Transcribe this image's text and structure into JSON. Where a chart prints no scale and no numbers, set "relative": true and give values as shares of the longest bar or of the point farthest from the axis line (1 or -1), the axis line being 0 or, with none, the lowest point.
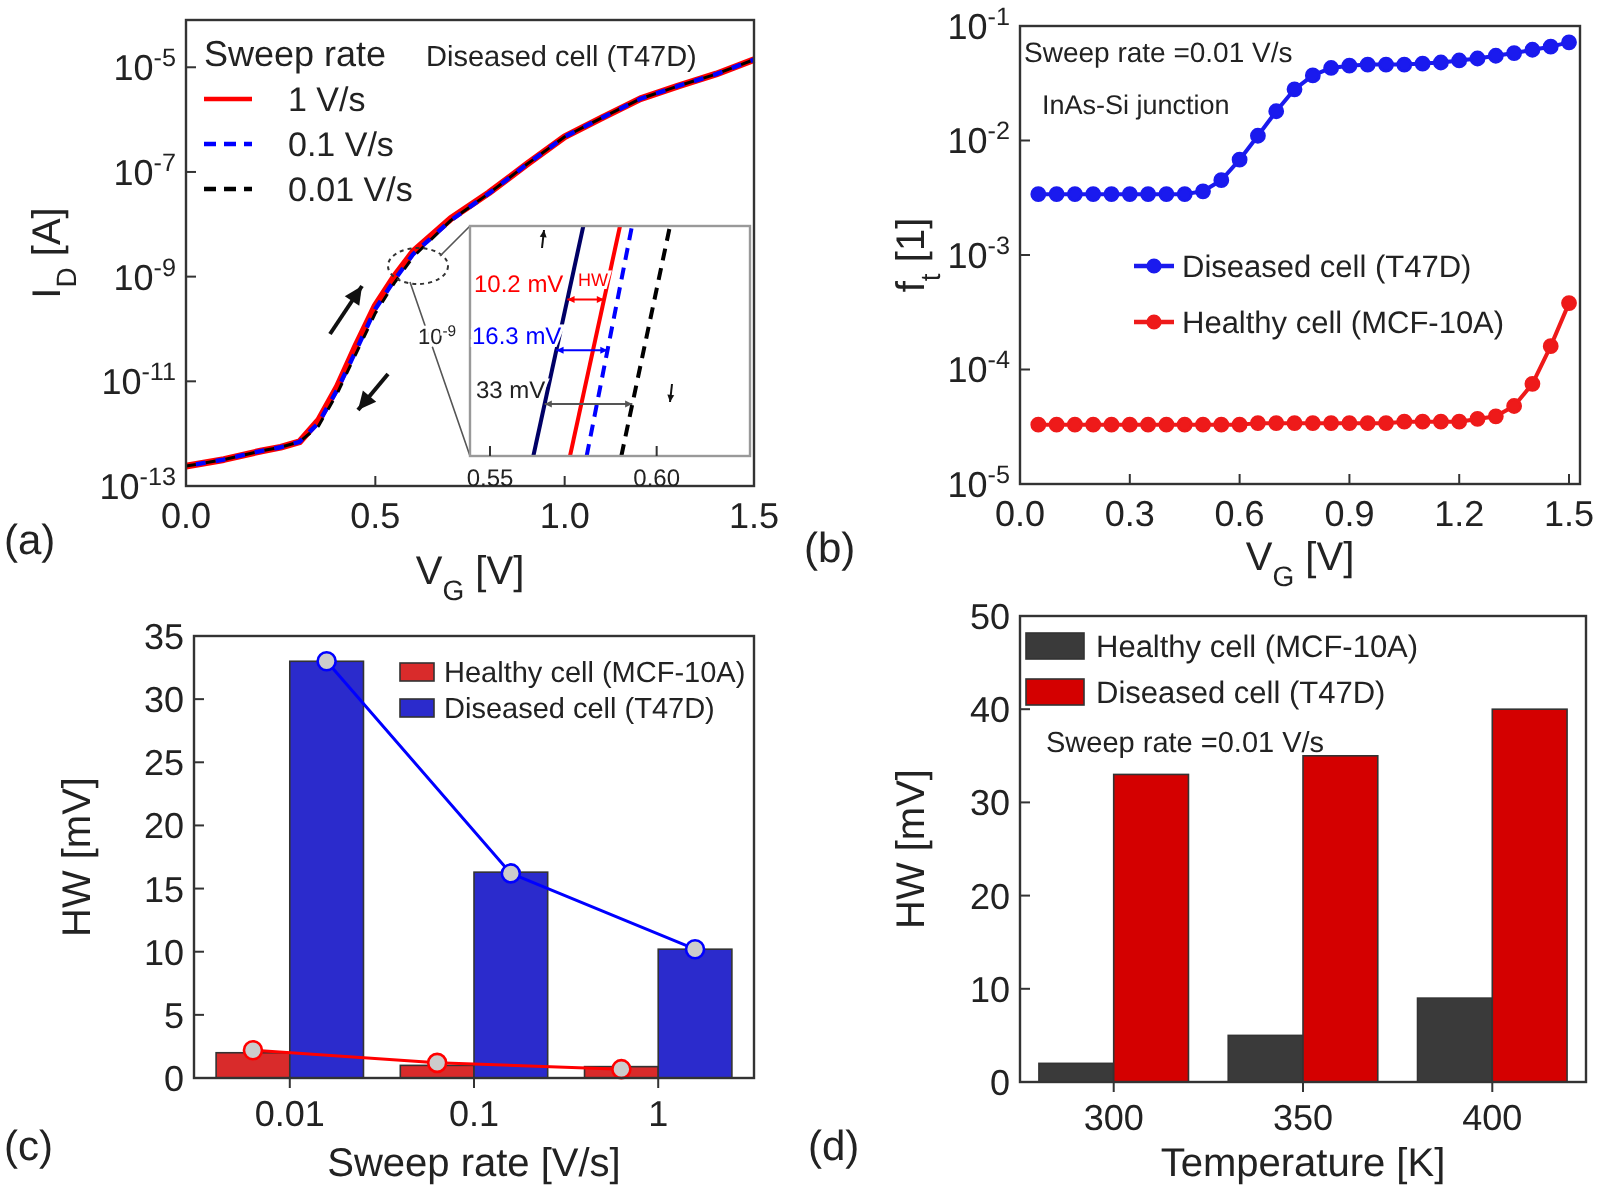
{
  "chart_data": [
    {
      "type": "line",
      "xlabel": "V$_{G}$ [V]",
      "ylabel": "I$_{D}$ [A]",
      "legend_title": "Sweep rate",
      "legend": "top left",
      "log": true,
      "annotations": [
        "(a)",
        "Diseased cell (T47D)"
      ],
      "x": [
        0,
        0.1,
        0.2,
        0.25,
        0.3,
        0.35,
        0.4,
        0.45,
        0.5,
        0.55,
        0.6,
        0.7,
        0.8,
        0.9,
        1.0,
        1.1,
        1.2,
        1.3,
        1.4,
        1.5
      ],
      "xlim": [
        0,
        1.5
      ],
      "xticks": [
        {
          "value": 0,
          "label": "0.0"
        },
        {
          "value": 0.5,
          "label": "0.5"
        },
        {
          "value": 1,
          "label": "1.0"
        },
        {
          "value": 1.5,
          "label": "1.5"
        }
      ],
      "ylim": [
        1e-13,
        8e-05
      ],
      "yticks": [
        {
          "value": 1e-13,
          "label": "10$^{-13}$"
        },
        {
          "value": 1e-11,
          "label": "10$^{-11}$"
        },
        {
          "value": 1e-09,
          "label": "10$^{-9}$"
        },
        {
          "value": 1e-07,
          "label": "10$^{-7}$"
        },
        {
          "value": 1e-05,
          "label": "10$^{-5}$"
        }
      ],
      "series": [
        {
          "name": "1 V/s",
          "color": "#ff0000",
          "line_style": "solid",
          "values": [
            2.4e-13,
            3.2e-13,
            4.7e-13,
            5.5e-13,
            7e-13,
            1.8e-12,
            8e-12,
            5e-11,
            2.8e-10,
            1e-09,
            3e-09,
            1.3e-08,
            4e-08,
            1.4e-07,
            4.7e-07,
            1.1e-06,
            2.5e-06,
            4.4e-06,
            7.4e-06,
            1.4e-05
          ]
        },
        {
          "name": "0.1 V/s",
          "color": "#0000ff",
          "line_style": "dashed",
          "values": [
            2.4e-13,
            3.2e-13,
            4.7e-13,
            5.5e-13,
            7e-13,
            1.6e-12,
            7e-12,
            4e-11,
            2.4e-10,
            8.5e-10,
            2.7e-09,
            1.2e-08,
            3.9e-08,
            1.4e-07,
            4.7e-07,
            1.1e-06,
            2.5e-06,
            4.4e-06,
            7.4e-06,
            1.4e-05
          ]
        },
        {
          "name": "0.01 V/s",
          "color": "#000000",
          "line_style": "dashed",
          "values": [
            2.4e-13,
            3.2e-13,
            4.7e-13,
            5.5e-13,
            7e-13,
            1.4e-12,
            6e-12,
            3.5e-11,
            2e-10,
            7.5e-10,
            2.4e-09,
            1.2e-08,
            3.9e-08,
            1.4e-07,
            4.7e-07,
            1.1e-06,
            2.5e-06,
            4.4e-06,
            7.4e-06,
            1.4e-05
          ]
        }
      ]
    },
    {
      "type": "line",
      "relative": true,
      "tick_labels": "x",
      "annotations": [
        "10$^{-9}$",
        "10.2 mV",
        "HW",
        "16.3 mV",
        "33 mV"
      ],
      "xlim": [
        0.544,
        0.628
      ],
      "xticks": [
        {
          "value": 0.55,
          "label": "0.55"
        },
        {
          "value": 0.6,
          "label": "0.60"
        }
      ],
      "series": [
        {
          "color": "#000066",
          "line_style": "solid",
          "x": [
            0.563,
            0.578
          ],
          "values": [
            0,
            1
          ]
        },
        {
          "color": "#ff0000",
          "line_style": "solid",
          "x": [
            0.574,
            0.589
          ],
          "values": [
            0,
            1
          ]
        },
        {
          "color": "#0000ff",
          "line_style": "dashed",
          "x": [
            0.579,
            0.5926
          ],
          "values": [
            0,
            1
          ]
        },
        {
          "color": "#000000",
          "line_style": "dashed",
          "x": [
            0.5894,
            0.604
          ],
          "values": [
            0,
            1
          ]
        }
      ]
    },
    {
      "type": "line",
      "xlabel": "V$_{G}$ [V]",
      "ylabel": "f$_{t}$ [1]",
      "legend": "left",
      "log": true,
      "marker": "circle",
      "annotations": [
        "(b)",
        "Sweep rate =0.01 V/s",
        "InAs-Si junction"
      ],
      "x": [
        0.05,
        0.1,
        0.15,
        0.2,
        0.25,
        0.3,
        0.35,
        0.4,
        0.45,
        0.5,
        0.55,
        0.6,
        0.65,
        0.7,
        0.75,
        0.8,
        0.85,
        0.9,
        0.95,
        1.0,
        1.05,
        1.1,
        1.15,
        1.2,
        1.25,
        1.3,
        1.35,
        1.4,
        1.45,
        1.5
      ],
      "xlim": [
        0,
        1.53
      ],
      "xticks": [
        {
          "value": 0,
          "label": "0.0"
        },
        {
          "value": 0.3,
          "label": "0.3"
        },
        {
          "value": 0.6,
          "label": "0.6"
        },
        {
          "value": 0.9,
          "label": "0.9"
        },
        {
          "value": 1.2,
          "label": "1.2"
        },
        {
          "value": 1.5,
          "label": "1.5"
        }
      ],
      "ylim": [
        1e-05,
        0.1
      ],
      "yticks": [
        {
          "value": 1e-05,
          "label": "10$^{-5}$"
        },
        {
          "value": 0.0001,
          "label": "10$^{-4}$"
        },
        {
          "value": 0.001,
          "label": "10$^{-3}$"
        },
        {
          "value": 0.01,
          "label": "10$^{-2}$"
        },
        {
          "value": 0.1,
          "label": "10$^{-1}$"
        }
      ],
      "series": [
        {
          "name": "Diseased cell (T47D)",
          "color": "#1a1aee",
          "values": [
            0.0034,
            0.0034,
            0.0034,
            0.0034,
            0.0034,
            0.0034,
            0.0034,
            0.0034,
            0.0034,
            0.0036,
            0.0045,
            0.0068,
            0.011,
            0.018,
            0.028,
            0.037,
            0.043,
            0.045,
            0.046,
            0.046,
            0.046,
            0.047,
            0.048,
            0.05,
            0.052,
            0.055,
            0.058,
            0.062,
            0.066,
            0.072
          ]
        },
        {
          "name": "Healthy cell (MCF-10A)",
          "color": "#ee1a1a",
          "values": [
            3.3e-05,
            3.3e-05,
            3.3e-05,
            3.3e-05,
            3.3e-05,
            3.3e-05,
            3.3e-05,
            3.3e-05,
            3.3e-05,
            3.3e-05,
            3.3e-05,
            3.3e-05,
            3.4e-05,
            3.4e-05,
            3.4e-05,
            3.4e-05,
            3.4e-05,
            3.4e-05,
            3.4e-05,
            3.4e-05,
            3.5e-05,
            3.5e-05,
            3.5e-05,
            3.5e-05,
            3.7e-05,
            3.9e-05,
            4.8e-05,
            7.5e-05,
            0.00016,
            0.00038
          ]
        }
      ]
    },
    {
      "type": "bar",
      "xlabel": "Sweep rate [V/s]",
      "ylabel": "HW [mV]",
      "legend": "top right",
      "annotations": [
        "(c)"
      ],
      "categories": [
        "0.01",
        "0.1",
        "1"
      ],
      "ylim": [
        0,
        35
      ],
      "yticks": [
        0,
        5,
        10,
        15,
        20,
        25,
        30,
        35
      ],
      "series": [
        {
          "name": "Healthy cell (MCF-10A)",
          "color": "#d92b2b",
          "values": [
            2,
            1,
            0.9
          ]
        },
        {
          "name": "Diseased cell (T47D)",
          "color": "#2b2bcc",
          "values": [
            33,
            16.3,
            10.2
          ]
        },
        {
          "type": "line",
          "color": "#ff0000",
          "marker": "circle",
          "x": [
            "0.01",
            "0.1",
            "1"
          ],
          "values": [
            2.2,
            1.2,
            0.7
          ]
        },
        {
          "type": "line",
          "color": "#0000ff",
          "marker": "circle",
          "x": [
            "0.01",
            "0.1",
            "1"
          ],
          "values": [
            33,
            16.2,
            10.2
          ]
        }
      ]
    },
    {
      "type": "bar",
      "xlabel": "Temperature [K]",
      "ylabel": "HW [mV]",
      "legend": "top left",
      "annotations": [
        "(d)",
        "Sweep rate =0.01 V/s"
      ],
      "categories": [
        "300",
        "350",
        "400"
      ],
      "ylim": [
        0,
        50
      ],
      "yticks": [
        0,
        10,
        20,
        30,
        40,
        50
      ],
      "series": [
        {
          "name": "Healthy cell (MCF-10A)",
          "color": "#3a3a3a",
          "values": [
            2,
            5,
            9
          ]
        },
        {
          "name": "Diseased cell (T47D)",
          "color": "#d40000",
          "values": [
            33,
            35,
            40
          ]
        }
      ]
    }
  ]
}
